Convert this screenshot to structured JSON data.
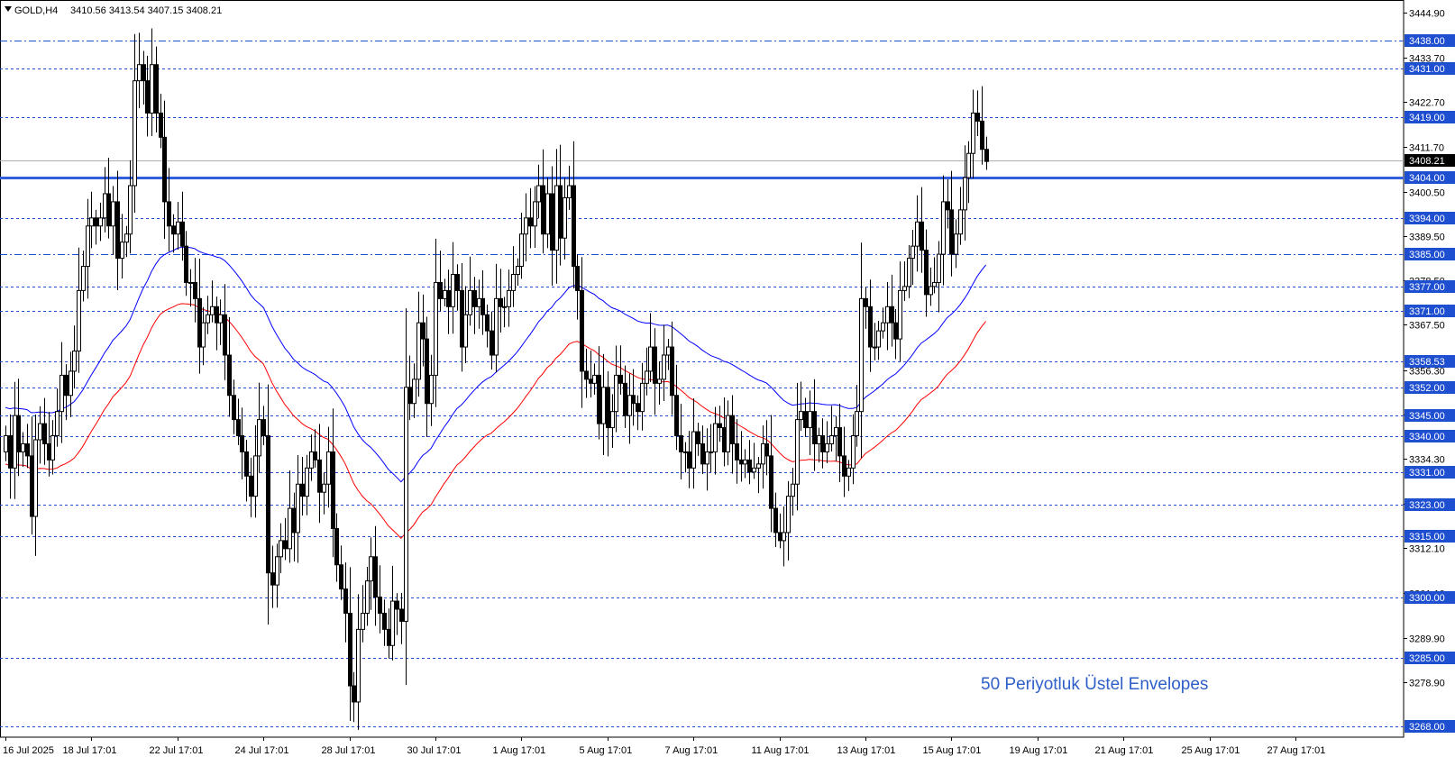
{
  "header": {
    "symbol": "GOLD,H4",
    "ohlc": "3410.56 3413.54 3407.15 3408.21"
  },
  "annotation": "50 Periyotluk Üstel Envelopes",
  "colors": {
    "upper_envelope": "#0000ff",
    "lower_envelope": "#ff0000",
    "level_lines": "#1f4fd1",
    "key_level": "#3060e0",
    "annotation": "#2f5fc8",
    "candles": "#000000",
    "price_tag_bg": "#000000"
  },
  "chart_data": {
    "type": "candlestick",
    "instrument": "GOLD",
    "timeframe": "H4",
    "ylim": [
      3268,
      3446
    ],
    "y_ticks": [
      "3444.90",
      "3433.70",
      "3422.70",
      "3411.70",
      "3400.50",
      "3389.50",
      "3378.50",
      "3367.50",
      "3356.30",
      "3345.30",
      "3334.30",
      "3323.10",
      "3312.10",
      "3301.10",
      "3289.90",
      "3278.90"
    ],
    "x_labels": [
      {
        "label": "16 Jul 2025",
        "bar": 0
      },
      {
        "label": "18 Jul 17:01",
        "bar": 20
      },
      {
        "label": "22 Jul 17:01",
        "bar": 40
      },
      {
        "label": "24 Jul 17:01",
        "bar": 60
      },
      {
        "label": "28 Jul 17:01",
        "bar": 80
      },
      {
        "label": "30 Jul 17:01",
        "bar": 100
      },
      {
        "label": "1 Aug 17:01",
        "bar": 120
      },
      {
        "label": "5 Aug 17:01",
        "bar": 140
      },
      {
        "label": "7 Aug 17:01",
        "bar": 160
      },
      {
        "label": "11 Aug 17:01",
        "bar": 180
      },
      {
        "label": "13 Aug 17:01",
        "bar": 200
      },
      {
        "label": "15 Aug 17:01",
        "bar": 220
      },
      {
        "label": "19 Aug 17:01",
        "bar": 240
      },
      {
        "label": "21 Aug 17:01",
        "bar": 260
      },
      {
        "label": "25 Aug 17:01",
        "bar": 280
      },
      {
        "label": "27 Aug 17:01",
        "bar": 300
      }
    ],
    "horizontal_levels": [
      {
        "value": 3438.0,
        "label": "3438.00",
        "style": "dashdot"
      },
      {
        "value": 3431.0,
        "label": "3431.00",
        "style": "dash"
      },
      {
        "value": 3419.0,
        "label": "3419.00",
        "style": "dash"
      },
      {
        "value": 3404.0,
        "label": "3404.00",
        "style": "solid"
      },
      {
        "value": 3394.0,
        "label": "3394.00",
        "style": "dash"
      },
      {
        "value": 3385.0,
        "label": "3385.00",
        "style": "dashdot"
      },
      {
        "value": 3377.0,
        "label": "3377.00",
        "style": "dash"
      },
      {
        "value": 3371.0,
        "label": "3371.00",
        "style": "dash"
      },
      {
        "value": 3358.53,
        "label": "3358.53",
        "style": "dash"
      },
      {
        "value": 3352.0,
        "label": "3352.00",
        "style": "dash"
      },
      {
        "value": 3345.0,
        "label": "3345.00",
        "style": "dash"
      },
      {
        "value": 3340.0,
        "label": "3340.00",
        "style": "dash"
      },
      {
        "value": 3331.0,
        "label": "3331.00",
        "style": "dash"
      },
      {
        "value": 3323.0,
        "label": "3323.00",
        "style": "dash"
      },
      {
        "value": 3315.0,
        "label": "3315.00",
        "style": "dash"
      },
      {
        "value": 3300.0,
        "label": "3300.00",
        "style": "dash"
      },
      {
        "value": 3285.0,
        "label": "3285.00",
        "style": "dash"
      },
      {
        "value": 3268.0,
        "label": "3268.00",
        "style": "dash"
      }
    ],
    "current_price": {
      "value": 3408.21,
      "label": "3408.21"
    },
    "closes": [
      3340,
      3332,
      3345,
      3336,
      3338,
      3335,
      3320,
      3339,
      3343,
      3338,
      3334,
      3340,
      3346,
      3355,
      3350,
      3356,
      3361,
      3376,
      3382,
      3392,
      3394,
      3392,
      3394,
      3400,
      3392,
      3398,
      3384,
      3388,
      3390,
      3402,
      3428,
      3432,
      3428,
      3420,
      3432,
      3420,
      3414,
      3398,
      3392,
      3390,
      3393,
      3387,
      3378,
      3378,
      3374,
      3362,
      3368,
      3370,
      3372,
      3368,
      3370,
      3360,
      3350,
      3344,
      3340,
      3336,
      3330,
      3325,
      3335,
      3344,
      3340,
      3306,
      3303,
      3310,
      3314,
      3312,
      3322,
      3316,
      3328,
      3325,
      3332,
      3336,
      3334,
      3326,
      3328,
      3336,
      3317,
      3308,
      3302,
      3296,
      3278,
      3274,
      3292,
      3296,
      3304,
      3310,
      3300,
      3296,
      3292,
      3288,
      3299,
      3297,
      3294,
      3352,
      3348,
      3354,
      3368,
      3364,
      3348,
      3355,
      3378,
      3374,
      3376,
      3372,
      3380,
      3376,
      3362,
      3370,
      3376,
      3372,
      3374,
      3370,
      3366,
      3360,
      3374,
      3372,
      3372,
      3376,
      3380,
      3382,
      3390,
      3394,
      3392,
      3398,
      3402,
      3390,
      3400,
      3386,
      3402,
      3389,
      3399,
      3402,
      3382,
      3376,
      3356,
      3354,
      3353,
      3355,
      3343,
      3352,
      3342,
      3346,
      3355,
      3353,
      3345,
      3350,
      3348,
      3346,
      3353,
      3356,
      3362,
      3353,
      3354,
      3360,
      3362,
      3350,
      3340,
      3336,
      3336,
      3332,
      3341,
      3338,
      3333,
      3336,
      3336,
      3343,
      3342,
      3336,
      3345,
      3338,
      3334,
      3333,
      3334,
      3331,
      3332,
      3333,
      3338,
      3335,
      3322,
      3316,
      3314,
      3316,
      3325,
      3328,
      3344,
      3346,
      3342,
      3346,
      3338,
      3340,
      3336,
      3338,
      3340,
      3342,
      3335,
      3330,
      3332,
      3340,
      3346,
      3374,
      3372,
      3362,
      3362,
      3366,
      3368,
      3372,
      3368,
      3364,
      3376,
      3377,
      3384,
      3387,
      3393,
      3386,
      3375,
      3377,
      3378,
      3385,
      3398,
      3396,
      3385,
      3390,
      3396,
      3404,
      3410,
      3420,
      3418,
      3411,
      3408
    ]
  }
}
